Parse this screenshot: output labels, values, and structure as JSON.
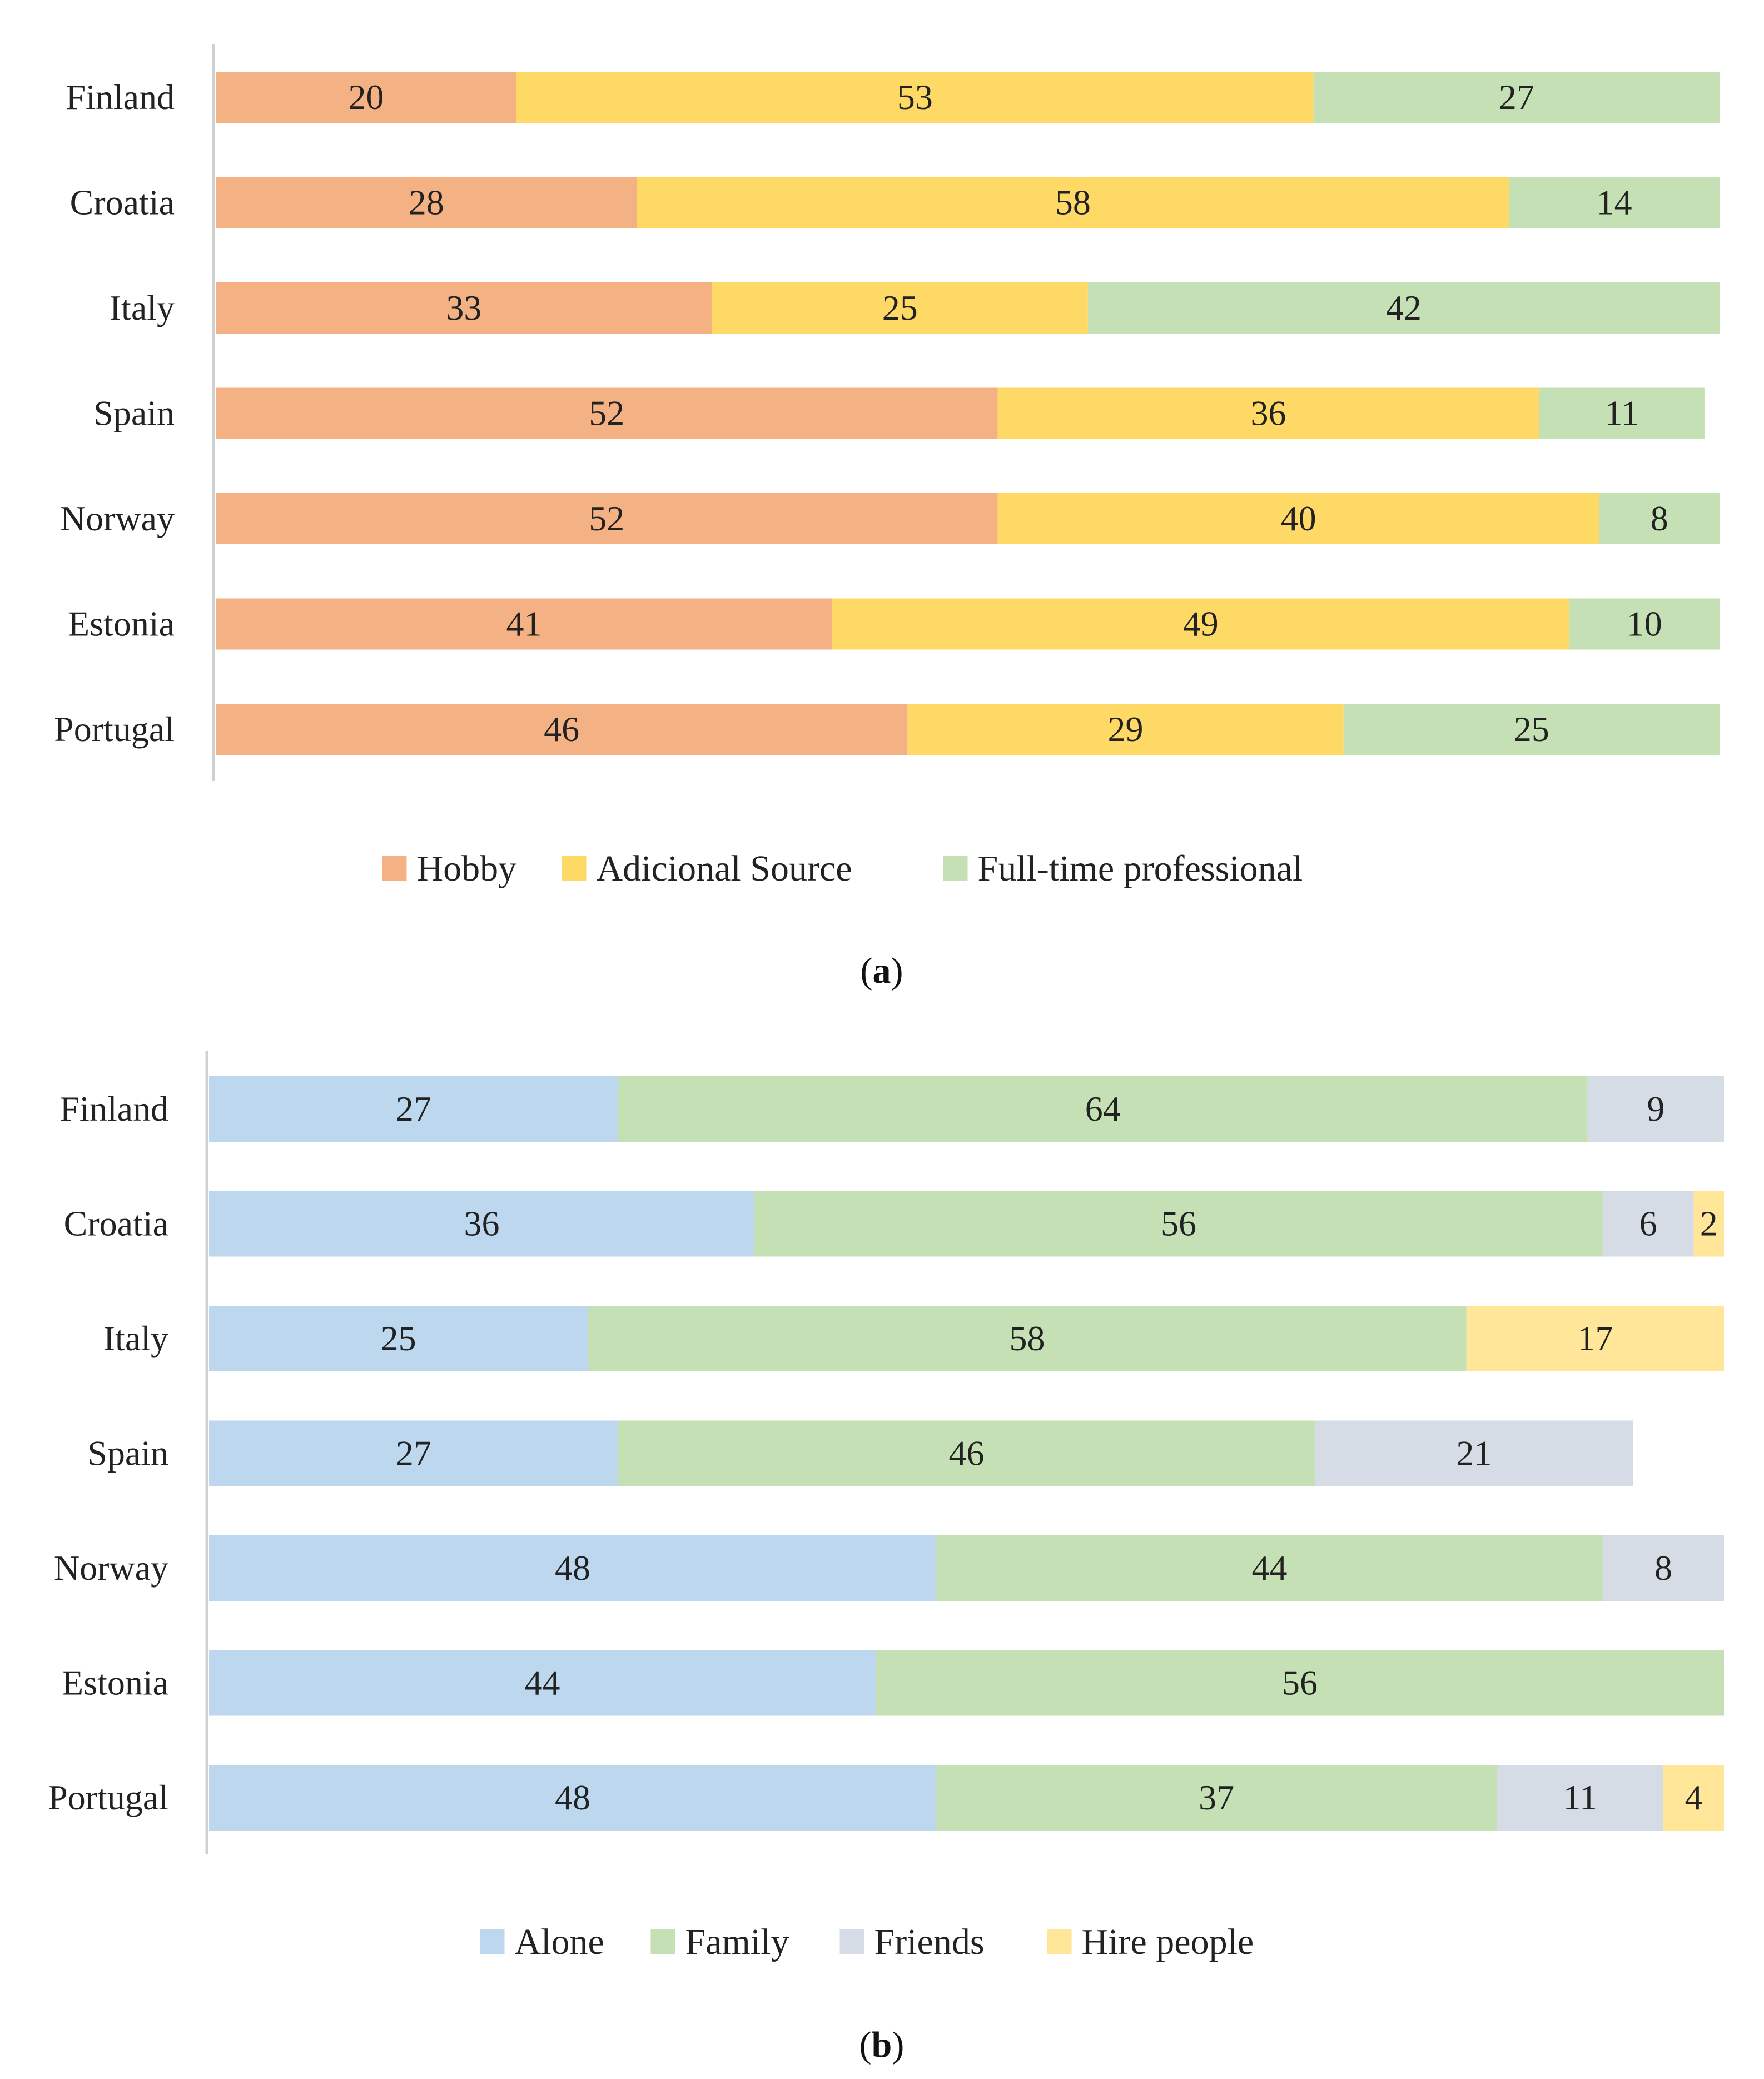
{
  "chart_data": [
    {
      "type": "bar",
      "orientation": "horizontal",
      "stacked": true,
      "percent": true,
      "categories": [
        "Finland",
        "Croatia",
        "Italy",
        "Spain",
        "Norway",
        "Estonia",
        "Portugal"
      ],
      "series": [
        {
          "name": "Hobby",
          "color": "#F4B183",
          "values": [
            20,
            28,
            33,
            52,
            52,
            41,
            46
          ]
        },
        {
          "name": "Adicional Source",
          "color": "#FFD966",
          "values": [
            53,
            58,
            25,
            36,
            40,
            49,
            29
          ]
        },
        {
          "name": "Full-time professional",
          "color": "#C5E0B4",
          "values": [
            27,
            14,
            42,
            11,
            8,
            10,
            25
          ]
        }
      ],
      "title": "",
      "xlabel": "",
      "ylabel": "",
      "xlim": [
        0,
        100
      ],
      "legend": "bottom-center",
      "grid": false,
      "caption_bold": "a"
    },
    {
      "type": "bar",
      "orientation": "horizontal",
      "stacked": true,
      "percent": true,
      "categories": [
        "Finland",
        "Croatia",
        "Italy",
        "Spain",
        "Norway",
        "Estonia",
        "Portugal"
      ],
      "series": [
        {
          "name": "Alone",
          "color": "#BDD7EE",
          "values": [
            27,
            36,
            25,
            27,
            48,
            44,
            48
          ]
        },
        {
          "name": "Family",
          "color": "#C5E0B4",
          "values": [
            64,
            56,
            58,
            46,
            44,
            56,
            37
          ]
        },
        {
          "name": "Friends",
          "color": "#D6DCE5",
          "values": [
            9,
            6,
            null,
            21,
            8,
            null,
            11
          ]
        },
        {
          "name": "Hire people",
          "color": "#FFE699",
          "values": [
            null,
            2,
            17,
            null,
            null,
            null,
            4
          ]
        }
      ],
      "title": "",
      "xlabel": "",
      "ylabel": "",
      "xlim": [
        0,
        100
      ],
      "legend": "bottom-center",
      "grid": false,
      "caption_bold": "b"
    }
  ],
  "captions": [
    {
      "open": "(",
      "bold": "a",
      "close": ")"
    },
    {
      "open": "(",
      "bold": "b",
      "close": ")"
    }
  ]
}
